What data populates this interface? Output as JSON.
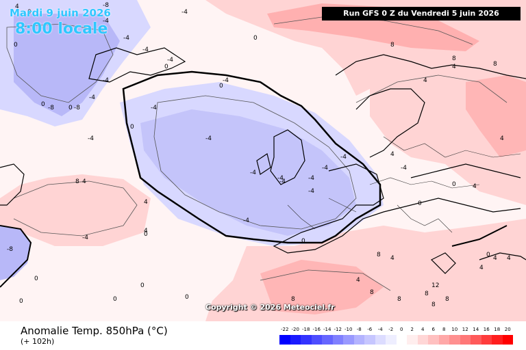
{
  "header": {
    "run": "Run GFS 0 Z du Vendredi 5 juin 2026",
    "date": "Mardi 9 juin 2026",
    "time": "8:00 locale"
  },
  "copyright": "Copyright © 2026 Meteociel.fr",
  "footer": {
    "parameter": "Anomalie Temp. 850hPa (°C)",
    "lead": "(+ 102h)"
  },
  "legend": {
    "ticks": [
      "-22",
      "-20",
      "-18",
      "-16",
      "-14",
      "-12",
      "-10",
      "-8",
      "-6",
      "-4",
      "-2",
      "0",
      "2",
      "4",
      "6",
      "8",
      "10",
      "12",
      "14",
      "16",
      "18",
      "20"
    ],
    "colors": [
      "#0000ff",
      "#1a1aff",
      "#3333ff",
      "#4d4dff",
      "#6666ff",
      "#8080ff",
      "#9999ff",
      "#b3b3ff",
      "#c6c6ff",
      "#dcdcff",
      "#eeeeff",
      "#ffffff",
      "#ffeeee",
      "#ffd6d6",
      "#ffc0c0",
      "#ffa8a8",
      "#ff9090",
      "#ff7878",
      "#ff5a5a",
      "#ff3c3c",
      "#ff1e1e",
      "#ff0000"
    ]
  },
  "contour_labels": [
    "-4",
    "-4",
    "-4",
    "-4",
    "-4",
    "-4",
    "-4",
    "-4",
    "-4",
    "-4",
    "-4",
    "-4",
    "-4",
    "-4",
    "-4",
    "-4",
    "-4",
    "-4",
    "-4",
    "-4",
    "-4",
    "-8",
    "-8",
    "-8",
    "-8",
    "0",
    "0",
    "0",
    "0",
    "0",
    "0",
    "0",
    "0",
    "0",
    "0",
    "0",
    "0",
    "0",
    "0",
    "0",
    "0",
    "0",
    "0",
    "4",
    "4",
    "4",
    "4",
    "4",
    "4",
    "4",
    "4",
    "4",
    "4",
    "4",
    "4",
    "4",
    "4",
    "8",
    "8",
    "8",
    "8",
    "8",
    "8",
    "8",
    "8",
    "8",
    "8",
    "8",
    "12"
  ]
}
